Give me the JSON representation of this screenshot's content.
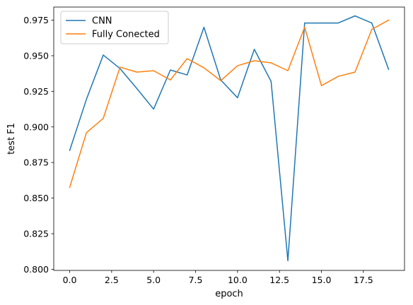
{
  "chart_data": {
    "type": "line",
    "title": "",
    "xlabel": "epoch",
    "ylabel": "test F1",
    "xlim": [
      -0.95,
      19.95
    ],
    "ylim": [
      0.7992,
      0.9842
    ],
    "xticks": [
      0.0,
      2.5,
      5.0,
      7.5,
      10.0,
      12.5,
      15.0,
      17.5
    ],
    "xtick_labels": [
      "0.0",
      "2.5",
      "5.0",
      "7.5",
      "10.0",
      "12.5",
      "15.0",
      "17.5"
    ],
    "yticks": [
      0.8,
      0.825,
      0.85,
      0.875,
      0.9,
      0.925,
      0.95,
      0.975
    ],
    "ytick_labels": [
      "0.800",
      "0.825",
      "0.850",
      "0.875",
      "0.900",
      "0.925",
      "0.950",
      "0.975"
    ],
    "grid": false,
    "legend_position": "top-left",
    "x": [
      0,
      1,
      2,
      3,
      4,
      5,
      6,
      7,
      8,
      9,
      10,
      11,
      12,
      13,
      14,
      15,
      16,
      17,
      18,
      19
    ],
    "series": [
      {
        "name": "CNN",
        "color": "#1f77b4",
        "values": [
          0.8835,
          0.9195,
          0.9505,
          0.941,
          0.927,
          0.9125,
          0.94,
          0.9365,
          0.97,
          0.933,
          0.9205,
          0.9545,
          0.932,
          0.806,
          0.973,
          0.973,
          0.973,
          0.978,
          0.973,
          0.9405
        ]
      },
      {
        "name": "Fully Conected",
        "color": "#ff7f0e",
        "values": [
          0.8575,
          0.896,
          0.906,
          0.942,
          0.9385,
          0.9395,
          0.933,
          0.948,
          0.9415,
          0.9325,
          0.943,
          0.9465,
          0.945,
          0.9395,
          0.97,
          0.929,
          0.9355,
          0.9385,
          0.9685,
          0.975
        ]
      }
    ]
  }
}
